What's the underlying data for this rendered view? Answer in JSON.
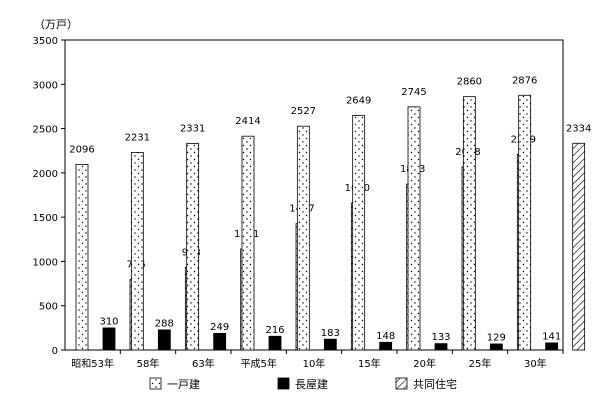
{
  "chart_data": {
    "type": "bar",
    "unit_label": "（万戸）",
    "categories": [
      "昭和53年",
      "58年",
      "63年",
      "平成5年",
      "10年",
      "15年",
      "20年",
      "25年",
      "30年"
    ],
    "ylim": [
      0,
      3500
    ],
    "yticks": [
      0,
      500,
      1000,
      1500,
      2000,
      2500,
      3000,
      3500
    ],
    "grid": false,
    "legend_position": "bottom",
    "series": [
      {
        "name": "一戸建",
        "values": [
          2096,
          2231,
          2331,
          2414,
          2527,
          2649,
          2745,
          2860,
          2876
        ],
        "pattern": "dots",
        "color": "#ffffff"
      },
      {
        "name": "長屋建",
        "values": [
          310,
          288,
          249,
          216,
          183,
          148,
          133,
          129,
          141
        ],
        "pattern": "solid",
        "color": "#000000"
      },
      {
        "name": "共同住宅",
        "values": [
          796,
          933,
          1141,
          1427,
          1660,
          1873,
          2068,
          2209,
          2334
        ],
        "pattern": "hatch",
        "color": "#ffffff"
      }
    ]
  }
}
